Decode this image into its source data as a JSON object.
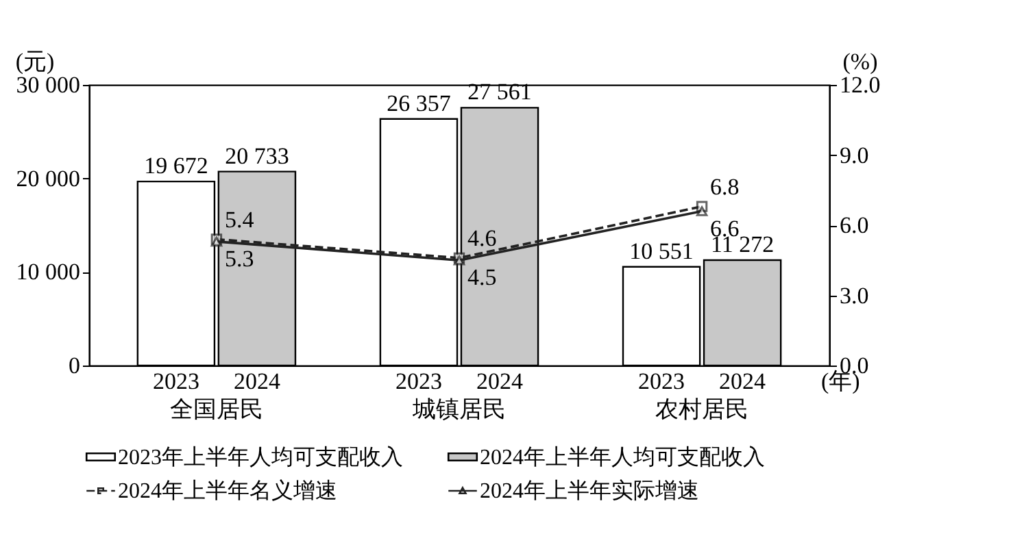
{
  "chart_data": {
    "type": "bar",
    "categories": [
      "全国居民",
      "城镇居民",
      "农村居民"
    ],
    "ylabel": "(元)",
    "y2label": "(%)",
    "ylim": [
      0,
      30000
    ],
    "yticks": [
      0,
      {
        "value": 10000,
        "label": "10 000"
      },
      {
        "value": 20000,
        "label": "20 000"
      },
      {
        "value": 30000,
        "label": "30 000"
      }
    ],
    "y2lim": [
      0,
      12
    ],
    "y2ticks": [
      {
        "value": 0,
        "label": "0.0"
      },
      {
        "value": 3,
        "label": "3.0"
      },
      {
        "value": 6,
        "label": "6.0"
      },
      {
        "value": 9,
        "label": "9.0"
      },
      {
        "value": 12,
        "label": "12.0"
      }
    ],
    "series": [
      {
        "name": "2023年上半年人均可支配收入",
        "color": "#ffffff",
        "values": [
          19672,
          26357,
          10551
        ],
        "value_labels": [
          "19 672",
          "26 357",
          "10 551"
        ]
      },
      {
        "name": "2024年上半年人均可支配收入",
        "color": "#c8c8c8",
        "values": [
          20733,
          27561,
          11272
        ],
        "value_labels": [
          "20 733",
          "27 561",
          "11 272"
        ]
      },
      {
        "name": "2024年上半年名义增速",
        "type": "line",
        "axis": "y2",
        "color": "#222222",
        "line_style": "dashed",
        "marker": "square",
        "values": [
          5.4,
          4.6,
          6.8
        ],
        "value_labels": [
          "5.4",
          "4.6",
          "6.8"
        ]
      },
      {
        "name": "2024年上半年实际增速",
        "type": "line",
        "axis": "y2",
        "color": "#222222",
        "line_style": "solid",
        "marker": "triangle",
        "values": [
          5.3,
          4.5,
          6.6
        ],
        "value_labels": [
          "5.3",
          "4.5",
          "6.6"
        ]
      }
    ],
    "annotations": [
      "2023",
      "2024",
      "2023",
      "2024",
      "2023",
      "2024",
      "(年)"
    ],
    "grid": false,
    "legend": "bottom"
  }
}
